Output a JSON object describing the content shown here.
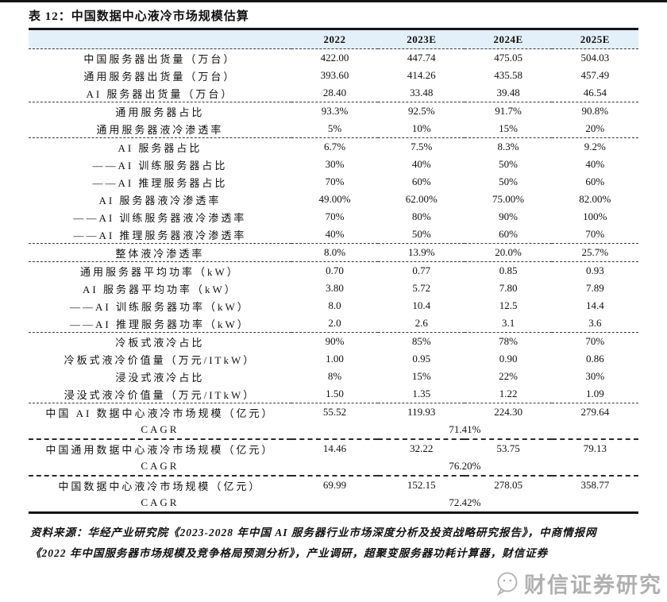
{
  "title": "表 12：中国数据中心液冷市场规模估算",
  "colors": {
    "header_bg": "#e4f0f9",
    "rule": "#141414",
    "watermark_gray": "#b0b0b0"
  },
  "table": {
    "columns": [
      "2022",
      "2023E",
      "2024E",
      "2025E"
    ],
    "groups": [
      {
        "rows": [
          {
            "label": "中国服务器出货量（万台）",
            "values": [
              "422.00",
              "447.74",
              "475.05",
              "504.03"
            ]
          },
          {
            "label": "通用服务器出货量（万台）",
            "values": [
              "393.60",
              "414.26",
              "435.58",
              "457.49"
            ]
          },
          {
            "label": "AI 服务器出货量（万台）",
            "values": [
              "28.40",
              "33.48",
              "39.48",
              "46.54"
            ]
          }
        ]
      },
      {
        "rows": [
          {
            "label": "通用服务器占比",
            "values": [
              "93.3%",
              "92.5%",
              "91.7%",
              "90.8%"
            ]
          },
          {
            "label": "通用服务器液冷渗透率",
            "values": [
              "5%",
              "10%",
              "15%",
              "20%"
            ]
          }
        ]
      },
      {
        "rows": [
          {
            "label": "AI 服务器占比",
            "values": [
              "6.7%",
              "7.5%",
              "8.3%",
              "9.2%"
            ]
          },
          {
            "label": "——AI 训练服务器占比",
            "values": [
              "30%",
              "40%",
              "50%",
              "40%"
            ]
          },
          {
            "label": "——AI 推理服务器占比",
            "values": [
              "70%",
              "60%",
              "50%",
              "60%"
            ]
          },
          {
            "label": "AI 服务器液冷渗透率",
            "values": [
              "49.00%",
              "62.00%",
              "75.00%",
              "82.00%"
            ]
          },
          {
            "label": "——AI 训练服务器液冷渗透率",
            "values": [
              "70%",
              "80%",
              "90%",
              "100%"
            ]
          },
          {
            "label": "——AI 推理服务器液冷渗透率",
            "values": [
              "40%",
              "50%",
              "60%",
              "70%"
            ]
          }
        ]
      },
      {
        "rows": [
          {
            "label": "整体液冷渗透率",
            "values": [
              "8.0%",
              "13.9%",
              "20.0%",
              "25.7%"
            ]
          }
        ]
      },
      {
        "rows": [
          {
            "label": "通用服务器平均功率（kW）",
            "values": [
              "0.70",
              "0.77",
              "0.85",
              "0.93"
            ]
          },
          {
            "label": "AI 服务器平均功率（kW）",
            "values": [
              "3.80",
              "5.72",
              "7.80",
              "7.89"
            ]
          },
          {
            "label": "——AI 训练服务器功率（kW）",
            "values": [
              "8.0",
              "10.4",
              "12.5",
              "14.4"
            ]
          },
          {
            "label": "——AI 推理服务器功率（kW）",
            "values": [
              "2.0",
              "2.6",
              "3.1",
              "3.6"
            ]
          }
        ]
      },
      {
        "rows": [
          {
            "label": "冷板式液冷占比",
            "values": [
              "90%",
              "85%",
              "78%",
              "70%"
            ]
          },
          {
            "label": "冷板式液冷价值量（万元/ITkW）",
            "values": [
              "1.00",
              "0.95",
              "0.90",
              "0.86"
            ]
          },
          {
            "label": "浸没式液冷占比",
            "values": [
              "8%",
              "15%",
              "22%",
              "30%"
            ]
          },
          {
            "label": "浸没式液冷价值量（万元/ITkW）",
            "values": [
              "1.50",
              "1.35",
              "1.22",
              "1.09"
            ]
          }
        ]
      },
      {
        "rows": [
          {
            "label": "中国 AI 数据中心液冷市场规模（亿元）",
            "values": [
              "55.52",
              "119.93",
              "224.30",
              "279.64"
            ]
          },
          {
            "label": "CAGR",
            "span_value": "71.41%"
          }
        ]
      },
      {
        "strong_divider": true,
        "rows": [
          {
            "label": "中国通用数据中心液冷市场规模（亿元）",
            "values": [
              "14.46",
              "32.22",
              "53.75",
              "79.13"
            ]
          },
          {
            "label": "CAGR",
            "span_value": "76.20%"
          }
        ]
      },
      {
        "strong_divider": true,
        "rows": [
          {
            "label": "中国数据中心液冷市场规模（亿元）",
            "values": [
              "69.99",
              "152.15",
              "278.05",
              "358.77"
            ]
          },
          {
            "label": "CAGR",
            "span_value": "72.42%"
          }
        ]
      }
    ]
  },
  "footer": {
    "line1": "资料来源：华经产业研究院《2023-2028 年中国 AI 服务器行业市场深度分析及投资战略研究报告》，中商情报网",
    "line2": "《2022 年中国服务器市场规模及竞争格局预测分析》，产业调研，超聚变服务器功耗计算器，财信证券"
  },
  "watermark": {
    "text": "财信证券研究"
  }
}
